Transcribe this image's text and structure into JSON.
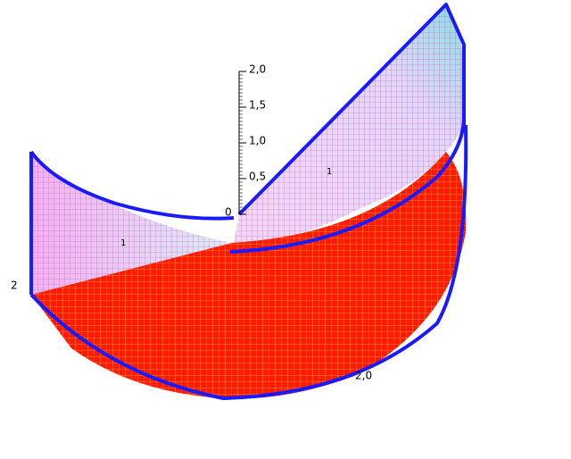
{
  "chart_data": {
    "type": "surface3d",
    "zlim": [
      0,
      2
    ],
    "zticks": [
      0,
      {
        "value": 0.5,
        "label": "0,5"
      },
      {
        "value": 1,
        "label": "1,0"
      },
      {
        "value": 1.5,
        "label": "1,5"
      },
      {
        "value": 2,
        "label": "2,0"
      }
    ],
    "xticks": [
      1,
      2
    ],
    "yticks": [
      1,
      {
        "value": 2,
        "label": "2,0"
      }
    ],
    "color": "#ff1a00",
    "edge_color": "#1a1aff"
  }
}
